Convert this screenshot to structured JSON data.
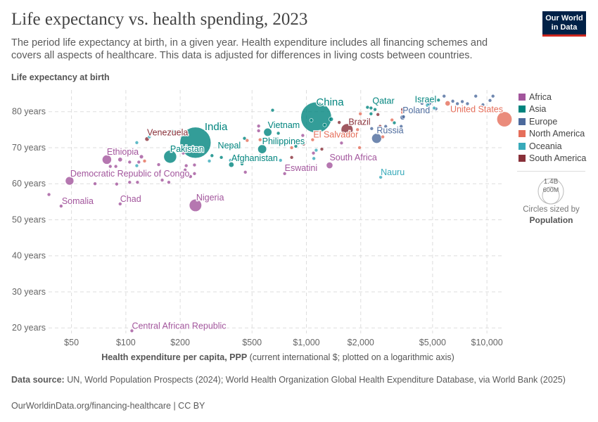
{
  "header": {
    "title": "Life expectancy vs. health spending, 2023",
    "subtitle": "The period life expectancy at birth, in a given year. Health expenditure includes all financing schemes and covers all aspects of healthcare. This data is adjusted for differences in living costs between countries.",
    "logo_line1": "Our World",
    "logo_line2": "in Data"
  },
  "footer": {
    "source_label": "Data source:",
    "source_text": " UN, World Population Prospects (2024); World Health Organization Global Health Expenditure Database, via World Bank (2025)",
    "url": "OurWorldinData.org/financing-healthcare | CC BY"
  },
  "legend": {
    "items": [
      {
        "label": "Africa",
        "color": "#a2559c"
      },
      {
        "label": "Asia",
        "color": "#00847e"
      },
      {
        "label": "Europe",
        "color": "#4c6a9c"
      },
      {
        "label": "North America",
        "color": "#e56e5a"
      },
      {
        "label": "Oceania",
        "color": "#38aaba"
      },
      {
        "label": "South America",
        "color": "#883039"
      }
    ],
    "size_big": "1.4B",
    "size_small": "600M",
    "size_caption": "Circles sized by",
    "size_variable": "Population"
  },
  "chart_data": {
    "type": "scatter",
    "title": "Life expectancy vs. health spending, 2023",
    "ylabel": "Life expectancy at birth",
    "xlabel_bold": "Health expenditure per capita, PPP",
    "xlabel_rest": " (current international $; plotted on a logarithmic axis)",
    "x_scale": "log",
    "xlim": [
      36,
      12500
    ],
    "ylim": [
      17.5,
      86
    ],
    "x_ticks": [
      {
        "v": 50,
        "label": "$50"
      },
      {
        "v": 100,
        "label": "$100"
      },
      {
        "v": 200,
        "label": "$200"
      },
      {
        "v": 500,
        "label": "$500"
      },
      {
        "v": 1000,
        "label": "$1,000"
      },
      {
        "v": 2000,
        "label": "$2,000"
      },
      {
        "v": 5000,
        "label": "$5,000"
      },
      {
        "v": 10000,
        "label": "$10,000"
      }
    ],
    "y_ticks": [
      {
        "v": 20,
        "label": "20 years"
      },
      {
        "v": 30,
        "label": "30 years"
      },
      {
        "v": 40,
        "label": "40 years"
      },
      {
        "v": 50,
        "label": "50 years"
      },
      {
        "v": 60,
        "label": "60 years"
      },
      {
        "v": 70,
        "label": "70 years"
      },
      {
        "v": 80,
        "label": "80 years"
      }
    ],
    "grid": true,
    "legend_placement": "right",
    "points": [
      {
        "name": "India",
        "region": "Asia",
        "x": 243,
        "y": 71.4,
        "pop": 1440
      },
      {
        "name": "China",
        "region": "Asia",
        "x": 1133,
        "y": 78.4,
        "pop": 1410
      },
      {
        "name": "United States",
        "region": "North America",
        "x": 12500,
        "y": 77.9,
        "pop": 340
      },
      {
        "name": "Pakistan",
        "region": "Asia",
        "x": 176,
        "y": 67.5,
        "pop": 245
      },
      {
        "name": "Nigeria",
        "region": "Africa",
        "x": 243,
        "y": 54,
        "pop": 228
      },
      {
        "name": "Russia",
        "region": "Europe",
        "x": 2450,
        "y": 72.6,
        "pop": 145
      },
      {
        "name": "Brazil",
        "region": "South America",
        "x": 1680,
        "y": 75,
        "pop": 211
      },
      {
        "name": "Ethiopia",
        "region": "Africa",
        "x": 78.5,
        "y": 66.7,
        "pop": 128
      },
      {
        "name": "Democratic Republic of Congo",
        "region": "Africa",
        "x": 48.8,
        "y": 60.8,
        "pop": 106
      },
      {
        "name": "Somalia",
        "region": "Africa",
        "x": 43.8,
        "y": 53.8,
        "pop": 18
      },
      {
        "name": "Chad",
        "region": "Africa",
        "x": 93,
        "y": 54.4,
        "pop": 19
      },
      {
        "name": "Venezuela",
        "region": "South America",
        "x": 131,
        "y": 72.4,
        "pop": 28
      },
      {
        "name": "Nepal",
        "region": "Asia",
        "x": 390,
        "y": 70.6,
        "pop": 30
      },
      {
        "name": "Afghanistan",
        "region": "Asia",
        "x": 384,
        "y": 65.3,
        "pop": 41
      },
      {
        "name": "Philippines",
        "region": "Asia",
        "x": 569,
        "y": 69.6,
        "pop": 115
      },
      {
        "name": "Vietnam",
        "region": "Asia",
        "x": 611,
        "y": 74.3,
        "pop": 99
      },
      {
        "name": "El Salvador",
        "region": "North America",
        "x": 1083,
        "y": 72.2,
        "pop": 6
      },
      {
        "name": "Eswatini",
        "region": "Africa",
        "x": 758,
        "y": 62.8,
        "pop": 1.2
      },
      {
        "name": "South Africa",
        "region": "Africa",
        "x": 1344,
        "y": 65.1,
        "pop": 63
      },
      {
        "name": "Nauru",
        "region": "Oceania",
        "x": 2580,
        "y": 61.8,
        "pop": 0.5
      },
      {
        "name": "Qatar",
        "region": "Asia",
        "x": 2280,
        "y": 81,
        "pop": 3
      },
      {
        "name": "Israel",
        "region": "Asia",
        "x": 5390,
        "y": 83.2,
        "pop": 10
      },
      {
        "name": "Poland",
        "region": "Europe",
        "x": 3410,
        "y": 78.4,
        "pop": 37
      },
      {
        "name": "Central African Republic",
        "region": "Africa",
        "x": 108,
        "y": 19.2,
        "pop": 5
      },
      {
        "region": "Africa",
        "x": 93,
        "y": 66.7,
        "pop": 30
      },
      {
        "region": "Africa",
        "x": 122,
        "y": 67.5,
        "pop": 25
      },
      {
        "region": "Africa",
        "x": 118,
        "y": 66,
        "pop": 18
      },
      {
        "region": "Africa",
        "x": 105,
        "y": 66,
        "pop": 5
      },
      {
        "region": "Africa",
        "x": 82,
        "y": 64.8,
        "pop": 5
      },
      {
        "region": "Africa",
        "x": 88,
        "y": 64.8,
        "pop": 5
      },
      {
        "region": "Africa",
        "x": 67.5,
        "y": 60,
        "pop": 5
      },
      {
        "region": "Africa",
        "x": 89,
        "y": 59.9,
        "pop": 5
      },
      {
        "region": "Africa",
        "x": 105,
        "y": 60.4,
        "pop": 5
      },
      {
        "region": "Africa",
        "x": 116,
        "y": 60.4,
        "pop": 5
      },
      {
        "region": "Africa",
        "x": 159,
        "y": 61,
        "pop": 5
      },
      {
        "region": "Africa",
        "x": 173,
        "y": 60.4,
        "pop": 5
      },
      {
        "region": "Africa",
        "x": 152,
        "y": 65.3,
        "pop": 5
      },
      {
        "region": "Africa",
        "x": 216,
        "y": 65,
        "pop": 5
      },
      {
        "region": "Africa",
        "x": 240,
        "y": 65.2,
        "pop": 12
      },
      {
        "region": "Africa",
        "x": 240,
        "y": 62.8,
        "pop": 8
      },
      {
        "region": "Africa",
        "x": 213,
        "y": 63.8,
        "pop": 12
      },
      {
        "region": "Africa",
        "x": 228,
        "y": 62,
        "pop": 20
      },
      {
        "region": "Africa",
        "x": 208,
        "y": 68.5,
        "pop": 5
      },
      {
        "region": "Africa",
        "x": 459,
        "y": 63.2,
        "pop": 3
      },
      {
        "region": "Africa",
        "x": 37.5,
        "y": 57,
        "pop": 4
      },
      {
        "region": "Africa",
        "x": 544,
        "y": 76,
        "pop": 10
      },
      {
        "region": "Africa",
        "x": 544,
        "y": 74.7,
        "pop": 8
      },
      {
        "region": "Africa",
        "x": 955,
        "y": 73.4,
        "pop": 5
      },
      {
        "region": "Africa",
        "x": 1094,
        "y": 68.5,
        "pop": 3
      },
      {
        "region": "Africa",
        "x": 1565,
        "y": 71.3,
        "pop": 3
      },
      {
        "region": "Asia",
        "x": 454,
        "y": 72.6,
        "pop": 10
      },
      {
        "region": "Asia",
        "x": 650,
        "y": 80.4,
        "pop": 3
      },
      {
        "region": "Asia",
        "x": 699,
        "y": 74,
        "pop": 5
      },
      {
        "region": "Asia",
        "x": 874,
        "y": 70.4,
        "pop": 4
      },
      {
        "region": "Asia",
        "x": 1065,
        "y": 77.6,
        "pop": 3
      },
      {
        "region": "Asia",
        "x": 1370,
        "y": 77.9,
        "pop": 30
      },
      {
        "region": "Asia",
        "x": 1262,
        "y": 76.3,
        "pop": 5
      },
      {
        "region": "Asia",
        "x": 2280,
        "y": 79.4,
        "pop": 3
      },
      {
        "region": "Asia",
        "x": 2180,
        "y": 81.2,
        "pop": 3
      },
      {
        "region": "Asia",
        "x": 2400,
        "y": 80.6,
        "pop": 3
      },
      {
        "region": "Asia",
        "x": 3070,
        "y": 76.9,
        "pop": 8
      },
      {
        "region": "Asia",
        "x": 4880,
        "y": 83,
        "pop": 5
      },
      {
        "region": "Asia",
        "x": 338,
        "y": 67.3,
        "pop": 4
      },
      {
        "region": "Asia",
        "x": 300,
        "y": 67.8,
        "pop": 4
      },
      {
        "region": "Asia",
        "x": 181,
        "y": 74.5,
        "pop": 30
      },
      {
        "region": "Asia",
        "x": 440,
        "y": 65.5,
        "pop": 3
      },
      {
        "region": "Europe",
        "x": 3450,
        "y": 78.6,
        "pop": 10
      },
      {
        "region": "Europe",
        "x": 2750,
        "y": 75.9,
        "pop": 4
      },
      {
        "region": "Europe",
        "x": 2300,
        "y": 75.3,
        "pop": 3
      },
      {
        "region": "Europe",
        "x": 4790,
        "y": 82.3,
        "pop": 30
      },
      {
        "region": "Europe",
        "x": 5790,
        "y": 84.3,
        "pop": 3
      },
      {
        "region": "Europe",
        "x": 6860,
        "y": 82.2,
        "pop": 3
      },
      {
        "region": "Europe",
        "x": 7300,
        "y": 82.8,
        "pop": 3
      },
      {
        "region": "Europe",
        "x": 7800,
        "y": 82.2,
        "pop": 3
      },
      {
        "region": "Europe",
        "x": 8670,
        "y": 84.3,
        "pop": 3
      },
      {
        "region": "Europe",
        "x": 10800,
        "y": 84.3,
        "pop": 3
      },
      {
        "region": "Europe",
        "x": 10400,
        "y": 83.1,
        "pop": 3
      },
      {
        "region": "Europe",
        "x": 4620,
        "y": 82.7,
        "pop": 3
      },
      {
        "region": "Europe",
        "x": 5220,
        "y": 80.8,
        "pop": 3
      },
      {
        "region": "Europe",
        "x": 4370,
        "y": 82.3,
        "pop": 3
      },
      {
        "region": "Europe",
        "x": 6470,
        "y": 82.9,
        "pop": 3
      },
      {
        "region": "Europe",
        "x": 9500,
        "y": 81.9,
        "pop": 3
      },
      {
        "region": "Europe",
        "x": 3350,
        "y": 75.9,
        "pop": 3
      },
      {
        "region": "North America",
        "x": 6060,
        "y": 82.3,
        "pop": 40
      },
      {
        "region": "North America",
        "x": 3410,
        "y": 79.8,
        "pop": 3
      },
      {
        "region": "North America",
        "x": 1990,
        "y": 79.4,
        "pop": 3
      },
      {
        "region": "North America",
        "x": 1920,
        "y": 75,
        "pop": 3
      },
      {
        "region": "North America",
        "x": 1970,
        "y": 70,
        "pop": 3
      },
      {
        "region": "North America",
        "x": 829,
        "y": 70,
        "pop": 3
      },
      {
        "region": "North America",
        "x": 554,
        "y": 72.2,
        "pop": 3
      },
      {
        "region": "North America",
        "x": 470,
        "y": 72,
        "pop": 3
      },
      {
        "region": "North America",
        "x": 2650,
        "y": 73,
        "pop": 3
      },
      {
        "region": "North America",
        "x": 2980,
        "y": 77.7,
        "pop": 3
      },
      {
        "region": "North America",
        "x": 127,
        "y": 66.3,
        "pop": 3
      },
      {
        "region": "Oceania",
        "x": 115,
        "y": 71.4,
        "pop": 3
      },
      {
        "region": "Oceania",
        "x": 135,
        "y": 73,
        "pop": 3
      },
      {
        "region": "Oceania",
        "x": 115,
        "y": 65,
        "pop": 3
      },
      {
        "region": "Oceania",
        "x": 290,
        "y": 66.3,
        "pop": 3
      },
      {
        "region": "Oceania",
        "x": 380,
        "y": 66.5,
        "pop": 3
      },
      {
        "region": "Oceania",
        "x": 719,
        "y": 66.5,
        "pop": 3
      },
      {
        "region": "Oceania",
        "x": 1100,
        "y": 67,
        "pop": 3
      },
      {
        "region": "Oceania",
        "x": 1133,
        "y": 69.3,
        "pop": 3
      },
      {
        "region": "Oceania",
        "x": 5100,
        "y": 81,
        "pop": 3
      },
      {
        "region": "Oceania",
        "x": 4700,
        "y": 81.8,
        "pop": 27
      },
      {
        "region": "South America",
        "x": 822,
        "y": 71.2,
        "pop": 3
      },
      {
        "region": "South America",
        "x": 965,
        "y": 71,
        "pop": 3
      },
      {
        "region": "South America",
        "x": 1218,
        "y": 69.6,
        "pop": 3
      },
      {
        "region": "South America",
        "x": 1520,
        "y": 77,
        "pop": 8
      },
      {
        "region": "South America",
        "x": 2490,
        "y": 79.2,
        "pop": 3
      },
      {
        "region": "South America",
        "x": 2560,
        "y": 75.9,
        "pop": 3
      },
      {
        "region": "South America",
        "x": 3410,
        "y": 80.6,
        "pop": 3
      },
      {
        "region": "South America",
        "x": 829,
        "y": 67.3,
        "pop": 3
      }
    ]
  }
}
